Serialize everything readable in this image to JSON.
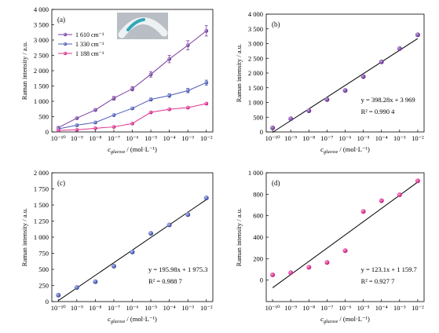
{
  "figure": {
    "ylabel": "Raman intensity / a.u.",
    "xlabel_main": "c",
    "xlabel_sub": "glucose",
    "xlabel_unit": " / (mol·L⁻¹)"
  },
  "chart_data": [
    {
      "panel": "(a)",
      "type": "line",
      "x": [
        -10,
        -9,
        -8,
        -7,
        -6,
        -5,
        -4,
        -3,
        -2
      ],
      "x_tick_labels": [
        "10⁻¹⁰",
        "10⁻⁹",
        "10⁻⁸",
        "10⁻⁷",
        "10⁻⁶",
        "10⁻⁵",
        "10⁻⁴",
        "10⁻³",
        "10⁻²"
      ],
      "ylim": [
        0,
        4000
      ],
      "y_ticks": [
        0,
        500,
        1000,
        1500,
        2000,
        2500,
        3000,
        3500,
        4000
      ],
      "y_tick_labels": [
        "0",
        "500",
        "1 000",
        "1 500",
        "2 000",
        "2 500",
        "3 000",
        "3 500",
        "4 000"
      ],
      "legend_position": "top-left",
      "has_inset_image": true,
      "series": [
        {
          "name": "1 610 cm⁻¹",
          "color": "#7b3fa0",
          "values": [
            140,
            450,
            720,
            1100,
            1410,
            1880,
            2380,
            2830,
            3300
          ],
          "errors": [
            20,
            30,
            40,
            60,
            70,
            90,
            120,
            150,
            170
          ]
        },
        {
          "name": "1 330 cm⁻¹",
          "color": "#4e5bb8",
          "values": [
            100,
            220,
            310,
            550,
            770,
            1060,
            1190,
            1350,
            1610
          ],
          "errors": [
            15,
            20,
            25,
            30,
            40,
            50,
            60,
            70,
            80
          ]
        },
        {
          "name": "1 188 cm⁻¹",
          "color": "#e0328a",
          "values": [
            50,
            70,
            120,
            165,
            275,
            640,
            740,
            795,
            925
          ],
          "errors": [
            10,
            10,
            10,
            15,
            20,
            30,
            30,
            30,
            40
          ]
        }
      ]
    },
    {
      "panel": "(b)",
      "type": "scatter",
      "x": [
        -10,
        -9,
        -8,
        -7,
        -6,
        -5,
        -4,
        -3,
        -2
      ],
      "x_tick_labels": [
        "10⁻¹⁰",
        "10⁻⁹",
        "10⁻⁸",
        "10⁻⁷",
        "10⁻⁶",
        "10⁻⁵",
        "10⁻⁴",
        "10⁻³",
        "10⁻²"
      ],
      "ylim": [
        0,
        4000
      ],
      "y_ticks": [
        0,
        500,
        1000,
        1500,
        2000,
        2500,
        3000,
        3500,
        4000
      ],
      "y_tick_labels": [
        "0",
        "500",
        "1 000",
        "1 500",
        "2 000",
        "2 500",
        "3 000",
        "3 500",
        "4 000"
      ],
      "values": [
        140,
        450,
        720,
        1100,
        1410,
        1880,
        2380,
        2830,
        3300
      ],
      "marker_color": "#7b3fa0",
      "fit": {
        "slope": 398.28,
        "intercept": 3969
      },
      "equation": "y = 398.28x + 3 969",
      "r2": "R² = 0.990 4"
    },
    {
      "panel": "(c)",
      "type": "scatter",
      "x": [
        -10,
        -9,
        -8,
        -7,
        -6,
        -5,
        -4,
        -3,
        -2
      ],
      "x_tick_labels": [
        "10⁻¹⁰",
        "10⁻⁹",
        "10⁻⁸",
        "10⁻⁷",
        "10⁻⁶",
        "10⁻⁵",
        "10⁻⁴",
        "10⁻³",
        "10⁻²"
      ],
      "ylim": [
        0,
        2000
      ],
      "y_ticks": [
        0,
        250,
        500,
        750,
        1000,
        1250,
        1500,
        1750,
        2000
      ],
      "y_tick_labels": [
        "0",
        "250",
        "500",
        "750",
        "1 000",
        "1 250",
        "1 500",
        "1 750",
        "2 000"
      ],
      "values": [
        100,
        220,
        310,
        550,
        770,
        1060,
        1190,
        1350,
        1610
      ],
      "marker_color": "#4e5bb8",
      "fit": {
        "slope": 195.98,
        "intercept": 1975.3
      },
      "equation": "y = 195.98x + 1 975.3",
      "r2": "R² = 0.988 7"
    },
    {
      "panel": "(d)",
      "type": "scatter",
      "x": [
        -10,
        -9,
        -8,
        -7,
        -6,
        -5,
        -4,
        -3,
        -2
      ],
      "x_tick_labels": [
        "10⁻¹⁰",
        "10⁻⁹",
        "10⁻⁸",
        "10⁻⁷",
        "10⁻⁶",
        "10⁻⁵",
        "10⁻⁴",
        "10⁻³",
        "10⁻²"
      ],
      "ylim": [
        -200,
        1000
      ],
      "y_ticks": [
        0,
        200,
        400,
        600,
        800,
        1000
      ],
      "y_tick_labels": [
        "0",
        "200",
        "400",
        "600",
        "800",
        "1 000"
      ],
      "values": [
        50,
        70,
        120,
        165,
        275,
        640,
        740,
        795,
        925
      ],
      "marker_color": "#e0328a",
      "fit": {
        "slope": 123.1,
        "intercept": 1159.7
      },
      "equation": "y = 123.1x + 1 159.7",
      "r2": "R² = 0.927 7"
    }
  ]
}
